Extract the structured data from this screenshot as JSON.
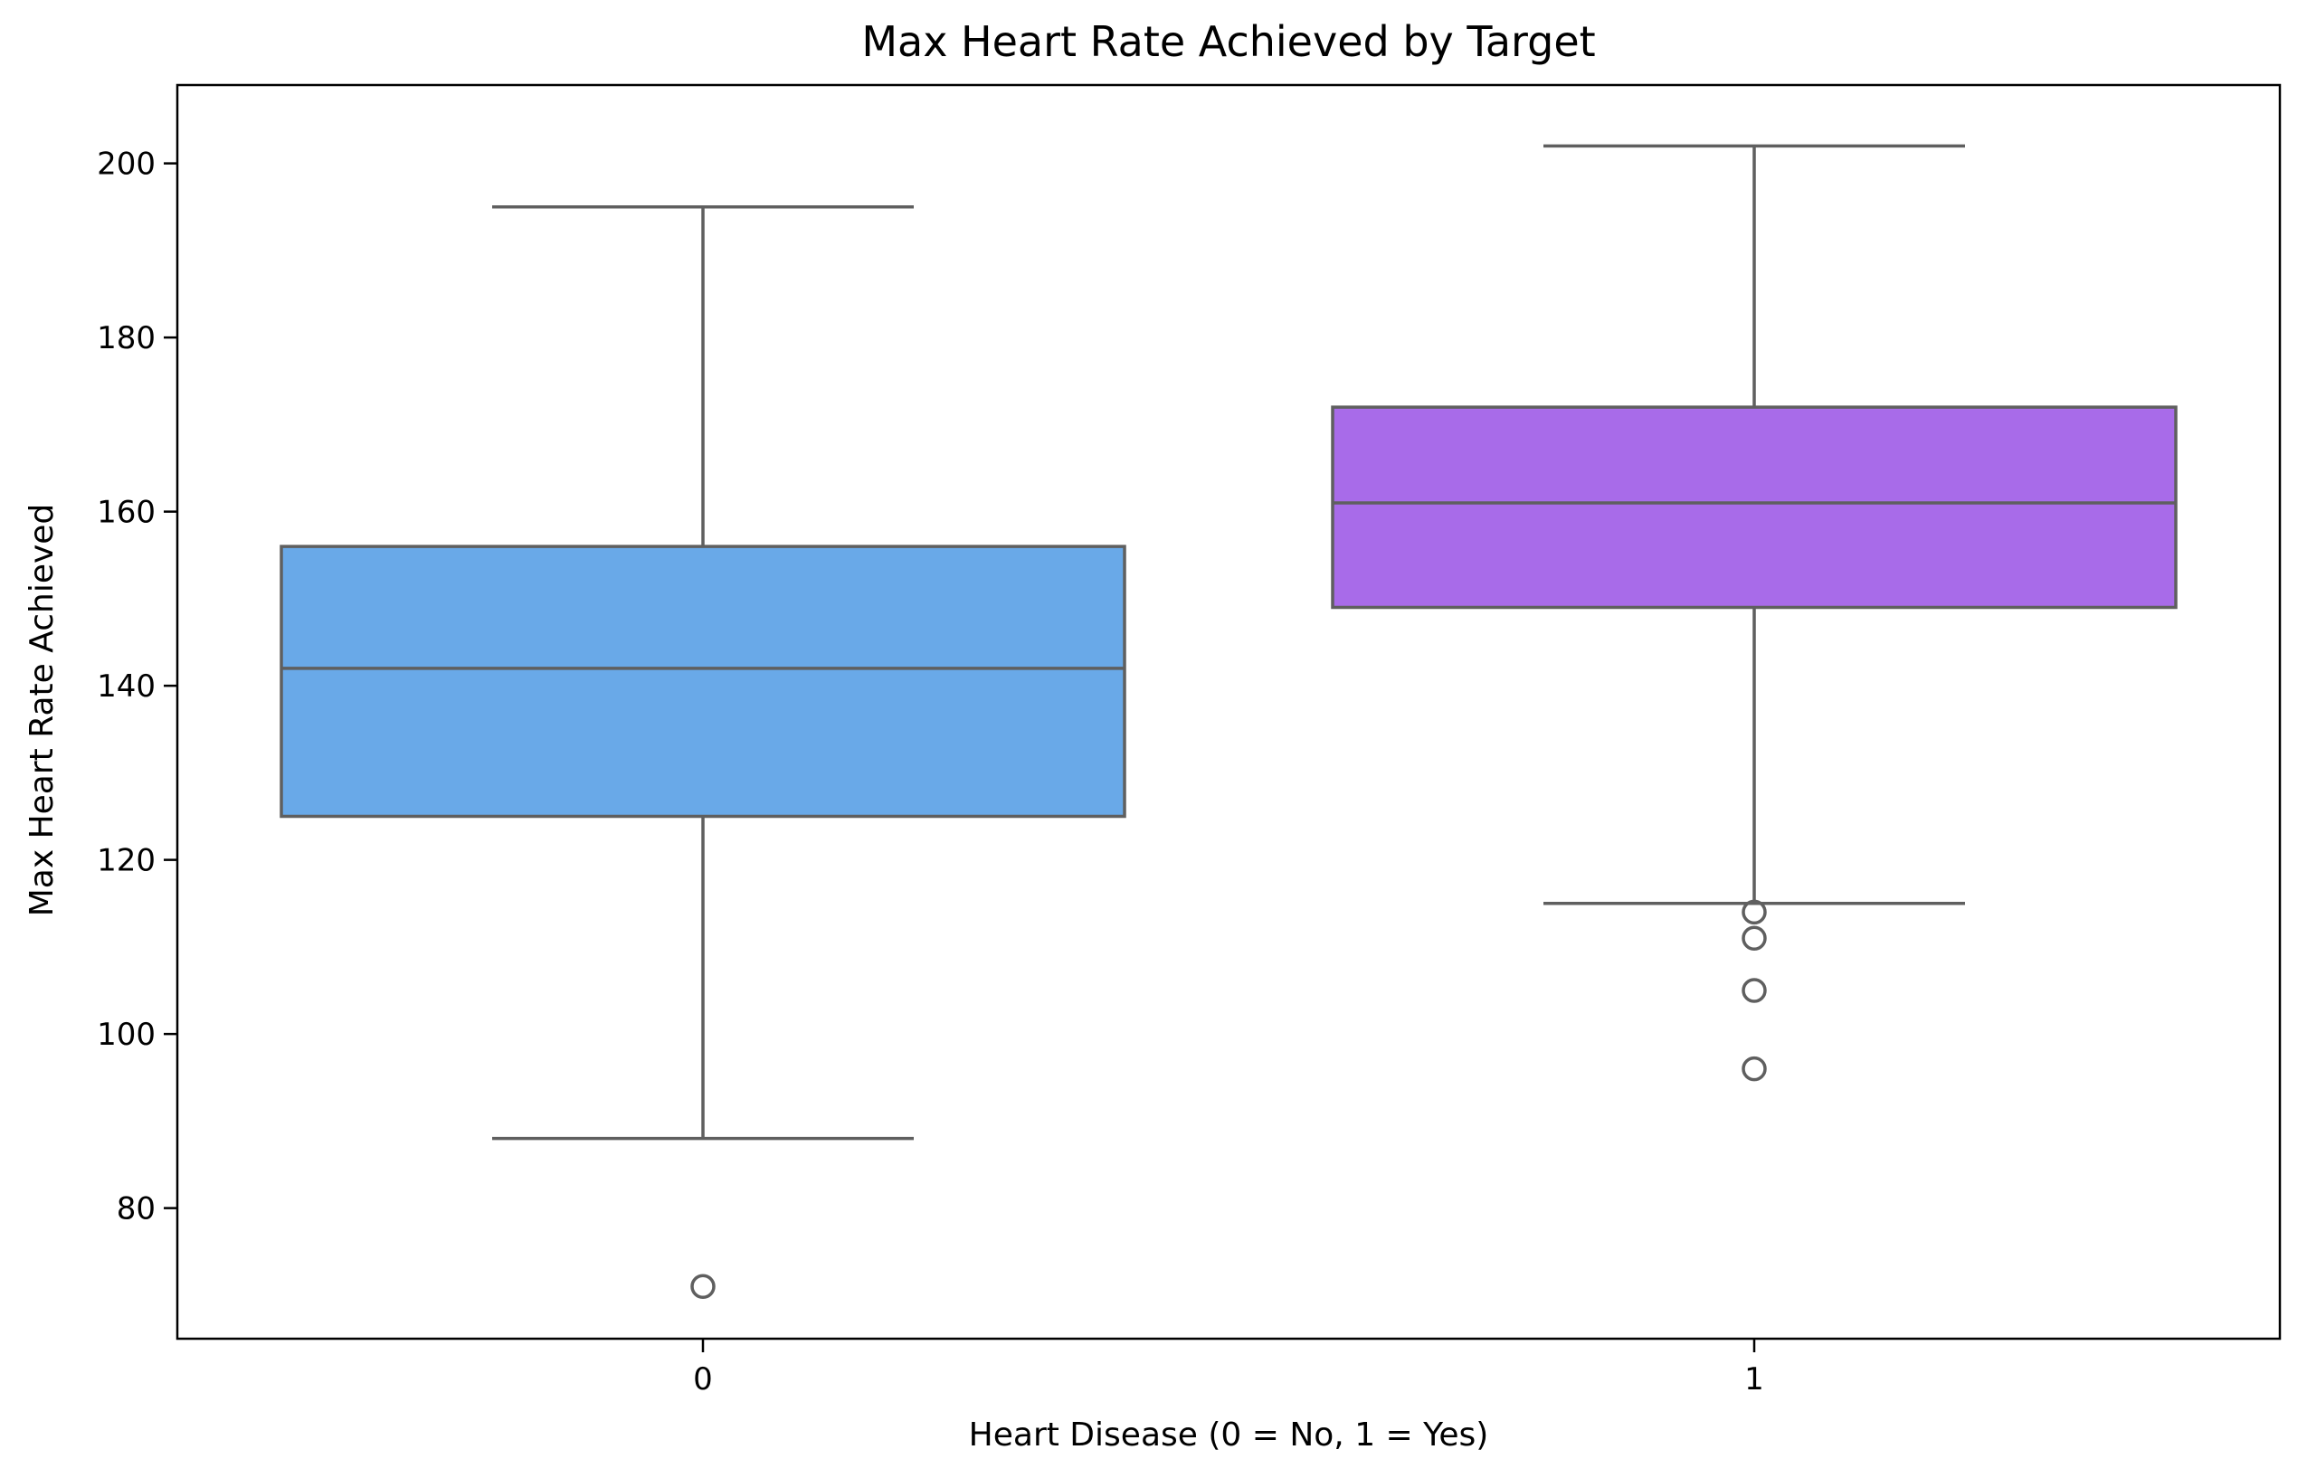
{
  "chart_data": {
    "type": "box",
    "title": "Max Heart Rate Achieved by Target",
    "xlabel": "Heart Disease (0 = No, 1 = Yes)",
    "ylabel": "Max Heart Rate Achieved",
    "categories": [
      "0",
      "1"
    ],
    "ylim": [
      65,
      209
    ],
    "yticks": [
      80,
      100,
      120,
      140,
      160,
      180,
      200
    ],
    "grid": false,
    "legend": "none",
    "series": [
      {
        "category": "0",
        "color": "#69a9e8",
        "whisker_low": 88,
        "q1": 125,
        "median": 142,
        "q3": 156,
        "whisker_high": 195,
        "outliers": [
          71
        ]
      },
      {
        "category": "1",
        "color": "#a86be9",
        "whisker_low": 115,
        "q1": 149,
        "median": 161,
        "q3": 172,
        "whisker_high": 202,
        "outliers": [
          114,
          111,
          105,
          96
        ]
      }
    ],
    "line_color": "#5f5f5f",
    "axis_color": "#000000"
  }
}
